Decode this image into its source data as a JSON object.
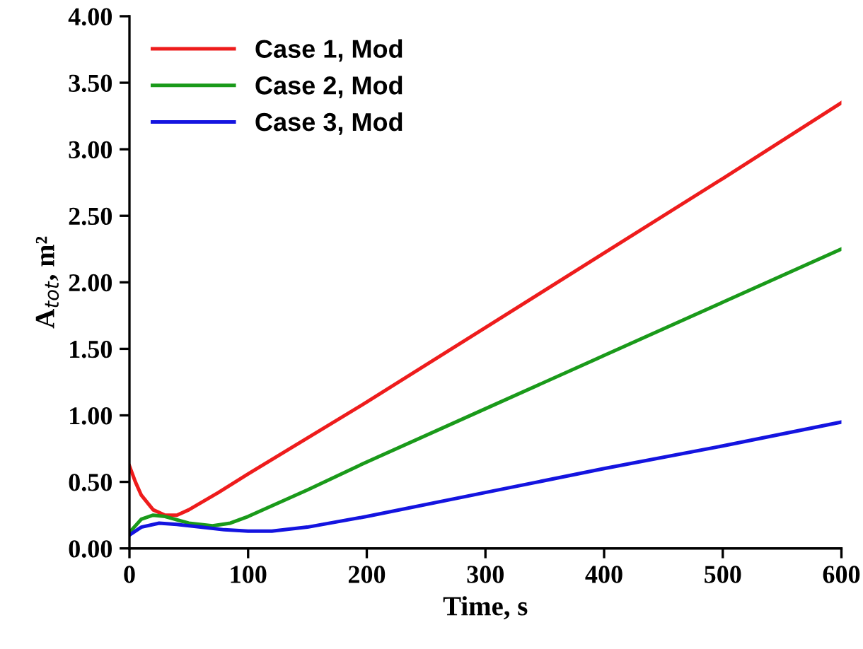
{
  "chart_data": {
    "type": "line",
    "xlabel": "Time, s",
    "ylabel": "A$_{tot}$, m²",
    "xlim": [
      0,
      600
    ],
    "xticks": [
      0,
      100,
      200,
      300,
      400,
      500,
      600
    ],
    "ylim": [
      0,
      4
    ],
    "yticks": [
      {
        "value": 0,
        "label": "0.00"
      },
      {
        "value": 0.5,
        "label": "0.50"
      },
      {
        "value": 1,
        "label": "1.00"
      },
      {
        "value": 1.5,
        "label": "1.50"
      },
      {
        "value": 2,
        "label": "2.00"
      },
      {
        "value": 2.5,
        "label": "2.50"
      },
      {
        "value": 3,
        "label": "3.00"
      },
      {
        "value": 3.5,
        "label": "3.50"
      },
      {
        "value": 4,
        "label": "4.00"
      }
    ],
    "legend": "top left",
    "grid": false,
    "marker": "none",
    "line_style": "solid",
    "series": [
      {
        "name": "Case 1, Mod",
        "color": "#ee1c1c",
        "x": [
          0,
          5,
          10,
          20,
          30,
          40,
          50,
          75,
          100,
          200,
          300,
          400,
          500,
          600
        ],
        "values": [
          0.62,
          0.5,
          0.4,
          0.29,
          0.25,
          0.25,
          0.29,
          0.42,
          0.56,
          1.1,
          1.66,
          2.22,
          2.78,
          3.35
        ]
      },
      {
        "name": "Case 2, Mod",
        "color": "#1a9a1a",
        "x": [
          0,
          10,
          20,
          30,
          50,
          70,
          85,
          100,
          150,
          200,
          300,
          400,
          500,
          600
        ],
        "values": [
          0.12,
          0.22,
          0.25,
          0.24,
          0.19,
          0.17,
          0.19,
          0.24,
          0.44,
          0.65,
          1.05,
          1.45,
          1.85,
          2.25
        ]
      },
      {
        "name": "Case 3, Mod",
        "color": "#1414e0",
        "x": [
          0,
          10,
          25,
          40,
          60,
          80,
          100,
          120,
          150,
          200,
          300,
          400,
          500,
          600
        ],
        "values": [
          0.1,
          0.16,
          0.19,
          0.18,
          0.16,
          0.14,
          0.13,
          0.13,
          0.16,
          0.24,
          0.42,
          0.6,
          0.77,
          0.95
        ]
      }
    ]
  }
}
